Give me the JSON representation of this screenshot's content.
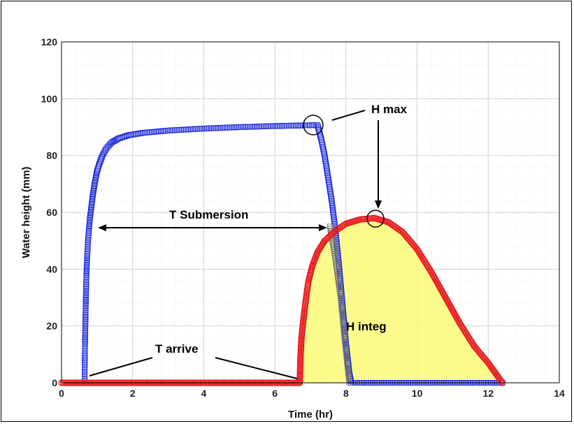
{
  "chart_data": {
    "type": "scatter",
    "xlabel": "Time (hr)",
    "ylabel": "Water height (mm)",
    "xlim": [
      0,
      14
    ],
    "ylim": [
      0,
      120
    ],
    "x_ticks": [
      0,
      2,
      4,
      6,
      8,
      10,
      12,
      14
    ],
    "y_ticks": [
      0,
      20,
      40,
      60,
      80,
      100,
      120
    ],
    "grid": true,
    "minor_grid": true,
    "series": [
      {
        "marker": "square",
        "color": "#1f2bd9",
        "points": [
          [
            0.65,
            0
          ],
          [
            0.65,
            5
          ],
          [
            0.66,
            13
          ],
          [
            0.67,
            20
          ],
          [
            0.68,
            27
          ],
          [
            0.69,
            33
          ],
          [
            0.7,
            38
          ],
          [
            0.72,
            44
          ],
          [
            0.74,
            49
          ],
          [
            0.77,
            54
          ],
          [
            0.8,
            58
          ],
          [
            0.84,
            62
          ],
          [
            0.88,
            66
          ],
          [
            0.93,
            70
          ],
          [
            0.99,
            74
          ],
          [
            1.06,
            77
          ],
          [
            1.15,
            80
          ],
          [
            1.26,
            82.5
          ],
          [
            1.4,
            84.5
          ],
          [
            1.6,
            86
          ],
          [
            1.9,
            87.2
          ],
          [
            2.3,
            88
          ],
          [
            3.0,
            88.8
          ],
          [
            4.0,
            89.5
          ],
          [
            5.0,
            90
          ],
          [
            6.0,
            90.4
          ],
          [
            6.8,
            90.6
          ],
          [
            7.2,
            90.7
          ],
          [
            7.3,
            86
          ],
          [
            7.4,
            80
          ],
          [
            7.5,
            72
          ],
          [
            7.6,
            64
          ],
          [
            7.7,
            54
          ],
          [
            7.8,
            42
          ],
          [
            7.9,
            28
          ],
          [
            8.0,
            14
          ],
          [
            8.1,
            3
          ],
          [
            8.15,
            0
          ],
          [
            12.4,
            0
          ]
        ]
      },
      {
        "marker": "circle",
        "color": "#e8191f",
        "points": [
          [
            0,
            0
          ],
          [
            6.7,
            0
          ],
          [
            6.72,
            9
          ],
          [
            6.75,
            16
          ],
          [
            6.8,
            22
          ],
          [
            6.85,
            27
          ],
          [
            6.9,
            32
          ],
          [
            6.95,
            36
          ],
          [
            7.05,
            41
          ],
          [
            7.2,
            46
          ],
          [
            7.4,
            50
          ],
          [
            7.7,
            53.5
          ],
          [
            8.0,
            56
          ],
          [
            8.4,
            57.5
          ],
          [
            8.8,
            58
          ],
          [
            9.2,
            56.5
          ],
          [
            9.6,
            53
          ],
          [
            10.0,
            47
          ],
          [
            10.4,
            39
          ],
          [
            10.8,
            30
          ],
          [
            11.2,
            21
          ],
          [
            11.6,
            13
          ],
          [
            12.0,
            7
          ],
          [
            12.2,
            3.5
          ],
          [
            12.4,
            0
          ]
        ]
      }
    ],
    "annotations": {
      "h_max": "H max",
      "t_submersion": "T Submersion",
      "h_integ": "H integ",
      "t_arrive": "T arrive"
    }
  }
}
